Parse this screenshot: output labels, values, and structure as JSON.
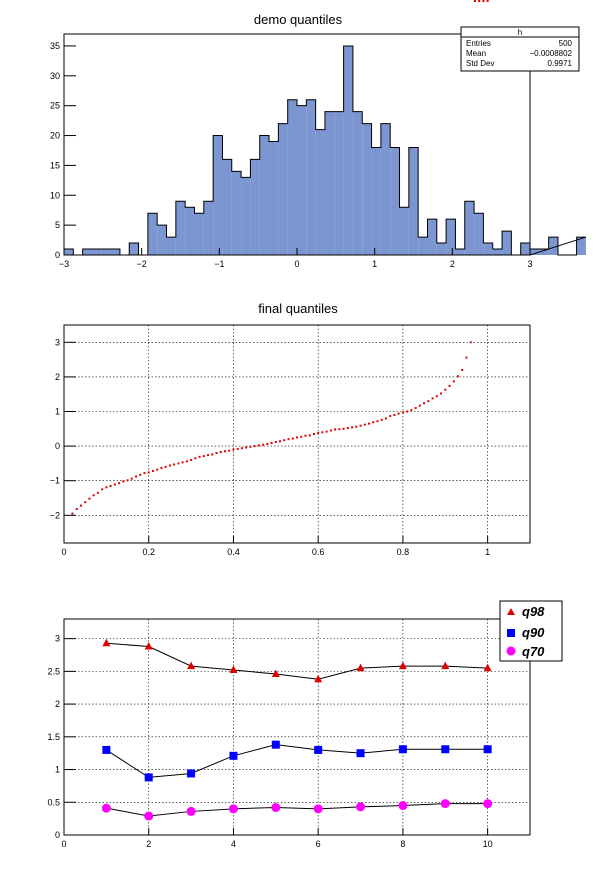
{
  "colors": {
    "hist_fill": "#7b96d1",
    "hist_line": "#000000",
    "quantile_marker": "#e00000",
    "q98": "#e00000",
    "q90": "#0000ff",
    "q70": "#ff00ff",
    "grid": "#000000"
  },
  "stats_box": {
    "name": "h",
    "rows": [
      {
        "label": "Entries",
        "value": "500"
      },
      {
        "label": "Mean",
        "value": "−0.0008802"
      },
      {
        "label": "Std Dev",
        "value": "0.9971"
      }
    ]
  },
  "chart_data": [
    {
      "type": "bar",
      "title": "demo quantiles",
      "xlim": [
        -3,
        3
      ],
      "ylim": [
        0,
        37
      ],
      "x_ticks": [
        -3,
        -2,
        -1,
        0,
        1,
        2,
        3
      ],
      "y_ticks": [
        0,
        5,
        10,
        15,
        20,
        25,
        30,
        35
      ],
      "x_tick_labels": [
        "−3",
        "−2",
        "−1",
        "0",
        "1",
        "2",
        "3"
      ],
      "y_tick_labels": [
        "0",
        "5",
        "10",
        "15",
        "20",
        "25",
        "30",
        "35"
      ],
      "grid": false,
      "bin_width": 0.12,
      "values": [
        1,
        0,
        1,
        1,
        1,
        1,
        0,
        2,
        0,
        7,
        5,
        3,
        9,
        8,
        7,
        9,
        20,
        16,
        14,
        13,
        16,
        20,
        19,
        22,
        26,
        25,
        26,
        21,
        24,
        24,
        35,
        24,
        22,
        18,
        22,
        18,
        8,
        18,
        3,
        6,
        2,
        6,
        1,
        9,
        7,
        2,
        1,
        4,
        0,
        2,
        1,
        1,
        3,
        0,
        0,
        3
      ]
    },
    {
      "type": "scatter",
      "title": "final quantiles",
      "xlim": [
        0,
        1.1
      ],
      "ylim": [
        -2.8,
        3.5
      ],
      "x_ticks": [
        0,
        0.2,
        0.4,
        0.6,
        0.8,
        1
      ],
      "y_ticks": [
        -2,
        -1,
        0,
        1,
        2,
        3
      ],
      "x_tick_labels": [
        "0",
        "0.2",
        "0.4",
        "0.6",
        "0.8",
        "1"
      ],
      "y_tick_labels": [
        "−2",
        "−1",
        "0",
        "1",
        "2",
        "3"
      ],
      "grid": true,
      "points_x": [
        0.02,
        0.03,
        0.04,
        0.05,
        0.06,
        0.07,
        0.08,
        0.09,
        0.1,
        0.11,
        0.12,
        0.13,
        0.14,
        0.15,
        0.16,
        0.17,
        0.18,
        0.19,
        0.2,
        0.21,
        0.22,
        0.23,
        0.24,
        0.25,
        0.26,
        0.27,
        0.28,
        0.29,
        0.3,
        0.31,
        0.32,
        0.33,
        0.34,
        0.35,
        0.36,
        0.37,
        0.38,
        0.39,
        0.4,
        0.41,
        0.42,
        0.43,
        0.44,
        0.45,
        0.46,
        0.47,
        0.48,
        0.49,
        0.5,
        0.51,
        0.52,
        0.53,
        0.54,
        0.55,
        0.56,
        0.57,
        0.58,
        0.59,
        0.6,
        0.61,
        0.62,
        0.63,
        0.64,
        0.65,
        0.66,
        0.67,
        0.68,
        0.69,
        0.7,
        0.71,
        0.72,
        0.73,
        0.74,
        0.75,
        0.76,
        0.77,
        0.78,
        0.79,
        0.8,
        0.81,
        0.82,
        0.83,
        0.84,
        0.85,
        0.86,
        0.87,
        0.88,
        0.89,
        0.9,
        0.91,
        0.92,
        0.93,
        0.94,
        0.95,
        0.96,
        0.97,
        0.98,
        0.99,
        1.0
      ],
      "points_y": [
        -1.95,
        -1.82,
        -1.72,
        -1.62,
        -1.52,
        -1.42,
        -1.35,
        -1.25,
        -1.19,
        -1.15,
        -1.11,
        -1.07,
        -1.02,
        -0.99,
        -0.94,
        -0.88,
        -0.83,
        -0.78,
        -0.76,
        -0.72,
        -0.68,
        -0.63,
        -0.6,
        -0.56,
        -0.53,
        -0.5,
        -0.47,
        -0.44,
        -0.4,
        -0.35,
        -0.31,
        -0.29,
        -0.26,
        -0.24,
        -0.2,
        -0.17,
        -0.15,
        -0.13,
        -0.1,
        -0.08,
        -0.06,
        -0.04,
        -0.02,
        0.0,
        0.02,
        0.04,
        0.06,
        0.09,
        0.12,
        0.14,
        0.17,
        0.2,
        0.22,
        0.25,
        0.27,
        0.3,
        0.31,
        0.35,
        0.38,
        0.4,
        0.42,
        0.45,
        0.48,
        0.49,
        0.5,
        0.52,
        0.54,
        0.56,
        0.59,
        0.62,
        0.65,
        0.69,
        0.72,
        0.76,
        0.8,
        0.87,
        0.9,
        0.94,
        0.97,
        1.0,
        1.04,
        1.1,
        1.17,
        1.24,
        1.3,
        1.38,
        1.44,
        1.52,
        1.63,
        1.74,
        1.87,
        2.02,
        2.2,
        2.56,
        3.0
      ]
    },
    {
      "type": "line",
      "title": "",
      "xlim": [
        0,
        11
      ],
      "ylim": [
        0,
        3.3
      ],
      "x_ticks": [
        0,
        2,
        4,
        6,
        8,
        10
      ],
      "y_ticks": [
        0,
        0.5,
        1,
        1.5,
        2,
        2.5,
        3
      ],
      "x_tick_labels": [
        "0",
        "2",
        "4",
        "6",
        "8",
        "10"
      ],
      "y_tick_labels": [
        "0",
        "0.5",
        "1",
        "1.5",
        "2",
        "2.5",
        "3"
      ],
      "grid": true,
      "legend_position": "top-right",
      "x": [
        1,
        2,
        3,
        4,
        5,
        6,
        7,
        8,
        9,
        10
      ],
      "series": [
        {
          "name": "q98",
          "marker": "triangle",
          "values": [
            2.93,
            2.88,
            2.58,
            2.52,
            2.46,
            2.38,
            2.55,
            2.58,
            2.58,
            2.55
          ]
        },
        {
          "name": "q90",
          "marker": "square",
          "values": [
            1.3,
            0.88,
            0.94,
            1.21,
            1.38,
            1.3,
            1.25,
            1.31,
            1.31,
            1.31
          ]
        },
        {
          "name": "q70",
          "marker": "circle",
          "values": [
            0.41,
            0.29,
            0.36,
            0.4,
            0.42,
            0.4,
            0.43,
            0.45,
            0.48,
            0.48
          ]
        }
      ]
    }
  ]
}
